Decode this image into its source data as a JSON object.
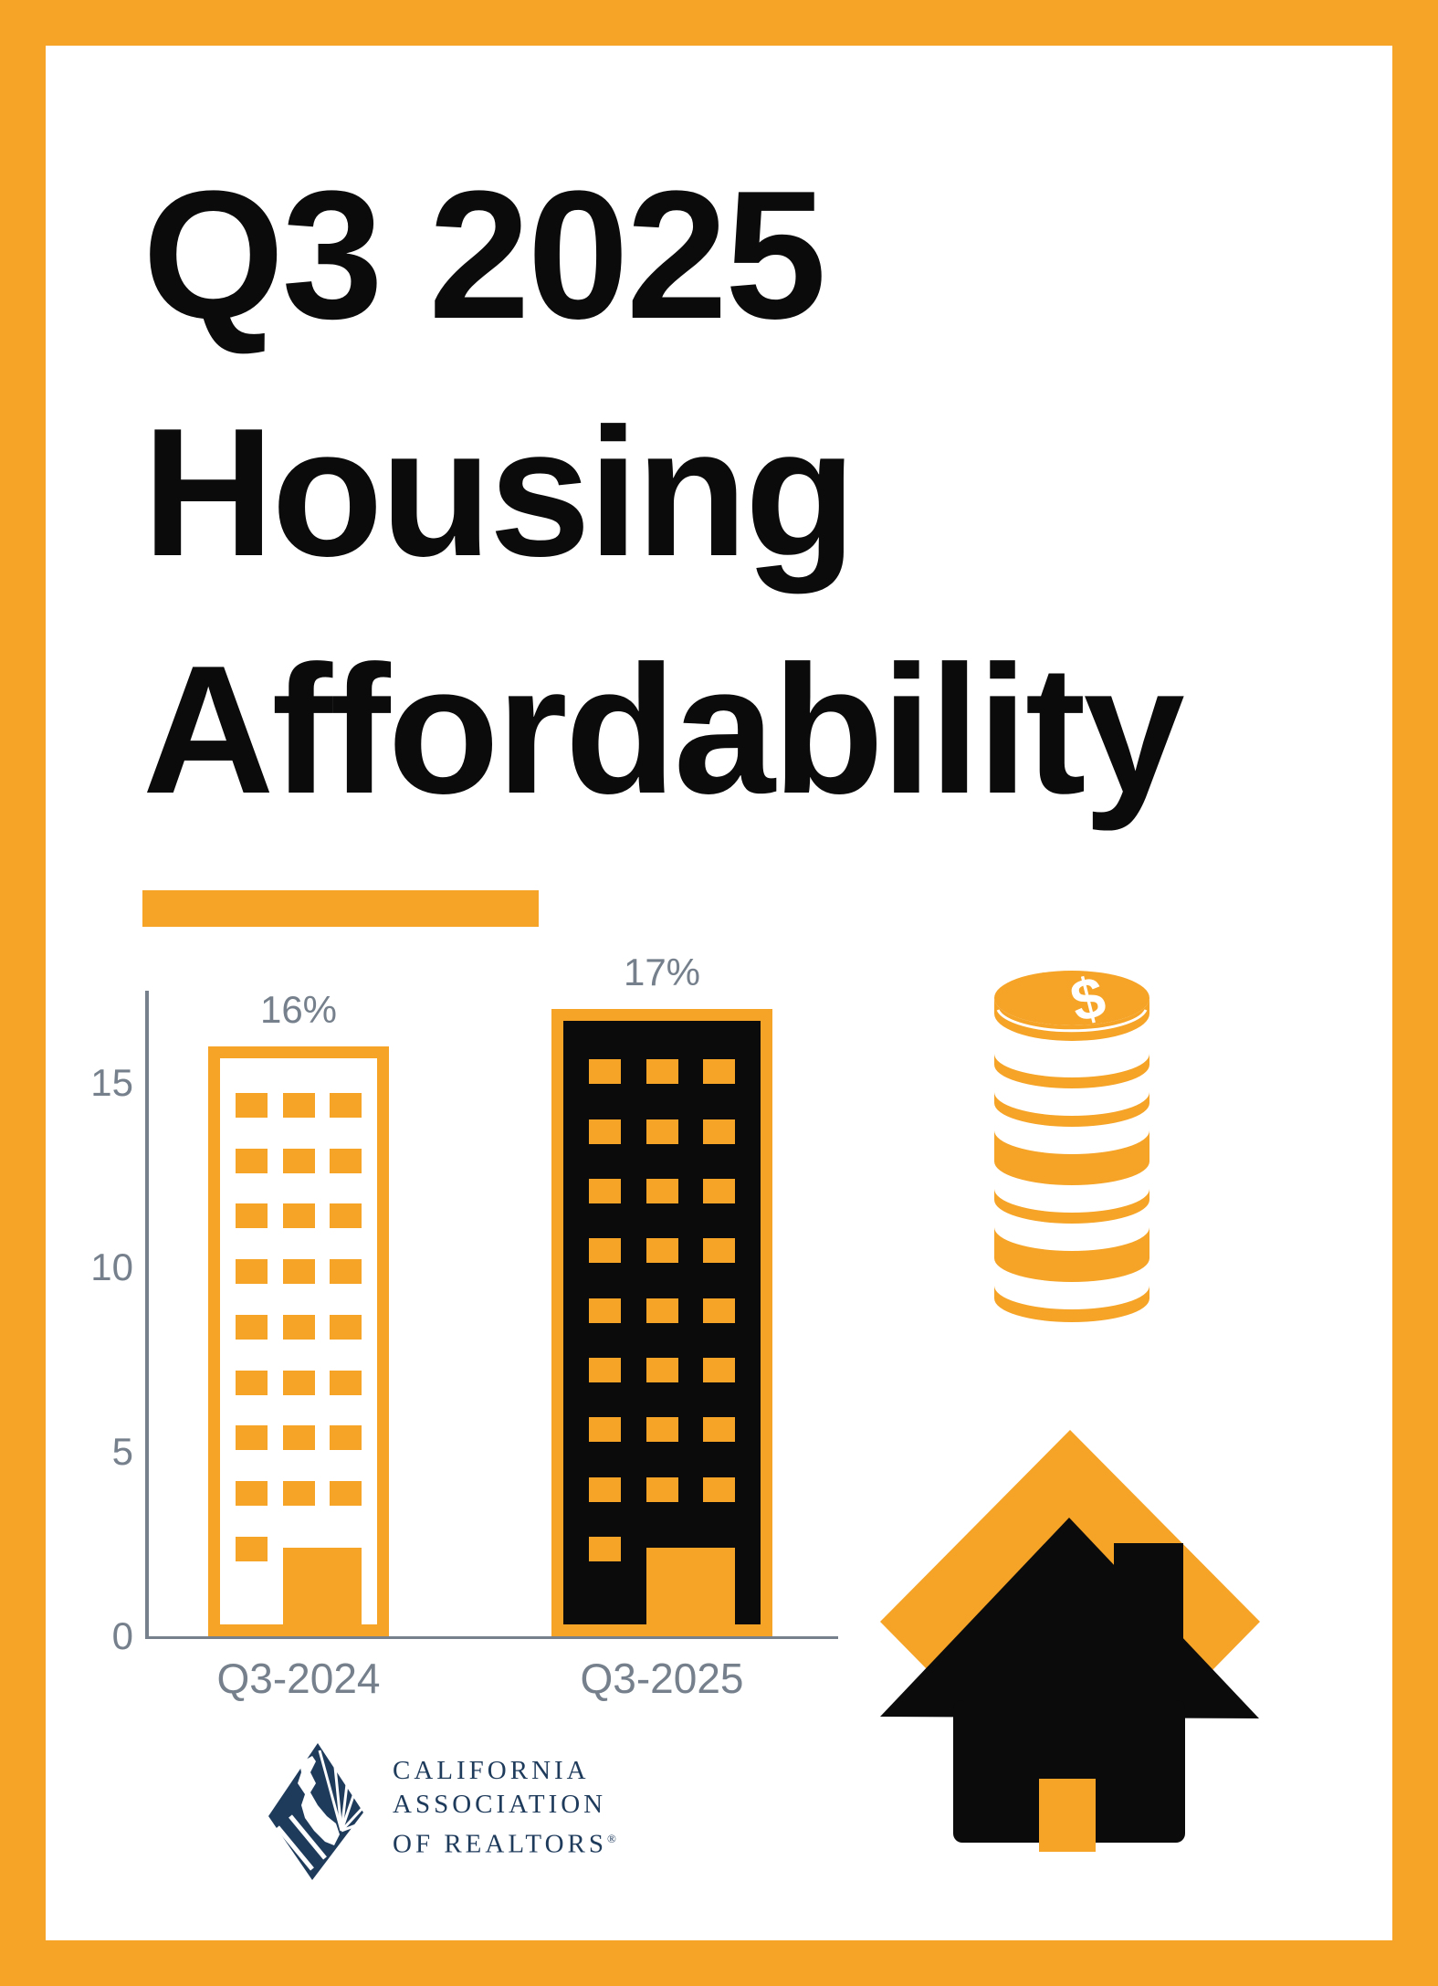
{
  "infographic": {
    "title_lines": [
      "Q3 2025",
      "Housing",
      "Affordability"
    ],
    "accent_color": "#F5A428",
    "text_color": "#0B0B0B"
  },
  "chart_data": {
    "type": "bar",
    "title": "Q3 2025 Housing Affordability",
    "categories": [
      "Q3-2024",
      "Q3-2025"
    ],
    "values": [
      16,
      17
    ],
    "value_labels": [
      "16%",
      "17%"
    ],
    "unit": "%",
    "yticks": [
      0,
      5,
      10,
      15
    ],
    "ylim": [
      0,
      17.5
    ],
    "xlabel": "",
    "ylabel": "",
    "grid": false,
    "legend_position": "none",
    "axis_color": "#75808C",
    "label_color": "#75808C",
    "bar_styles": [
      {
        "name": "building-outlined",
        "fill": "#FFFFFF",
        "outline": "#F5A428",
        "window_rows": 8,
        "window_cols": 3
      },
      {
        "name": "building-solid",
        "fill": "#0B0B0B",
        "outline": "#F5A428",
        "window_rows": 8,
        "window_cols": 3
      }
    ]
  },
  "icons": {
    "coins": "coin-stack-dollar-icon",
    "house": "house-diamond-icon",
    "dollar_sign": "$"
  },
  "logo": {
    "mark": "car-diamond-logo",
    "lines": [
      "CALIFORNIA",
      "ASSOCIATION",
      "OF REALTORS"
    ],
    "registered_mark": "®",
    "color": "#1F3B5C"
  }
}
